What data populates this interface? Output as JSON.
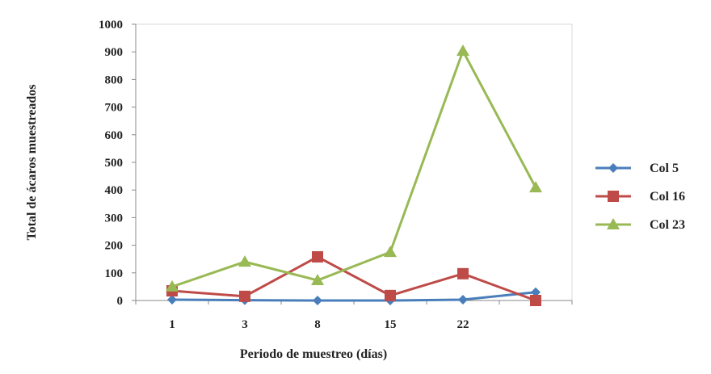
{
  "chart_data": {
    "type": "line",
    "title": "",
    "xlabel": "Periodo de muestreo (días)",
    "ylabel": "Total de ácaros muestreados",
    "categories": [
      "1",
      "3",
      "8",
      "15",
      "22",
      ""
    ],
    "ylim": [
      0,
      1000
    ],
    "yticks": [
      0,
      100,
      200,
      300,
      400,
      500,
      600,
      700,
      800,
      900,
      1000
    ],
    "grid": false,
    "legend_position": "right",
    "series": [
      {
        "name": "Col 5",
        "color": "#4a7ebb",
        "marker": "diamond",
        "values": [
          3,
          1,
          0,
          0,
          3,
          30
        ]
      },
      {
        "name": "Col 16",
        "color": "#be4b48",
        "marker": "square",
        "values": [
          35,
          15,
          158,
          18,
          97,
          0
        ]
      },
      {
        "name": "Col 23",
        "color": "#98b954",
        "marker": "triangle",
        "values": [
          50,
          140,
          73,
          175,
          903,
          409
        ]
      }
    ]
  }
}
